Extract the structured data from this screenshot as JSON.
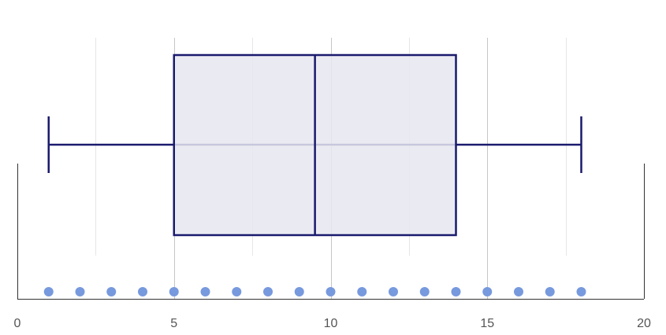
{
  "chart_data": {
    "type": "boxplot",
    "title": "",
    "xlabel": "",
    "ylabel": "",
    "xlim": [
      0,
      20
    ],
    "x_ticks": [
      0,
      5,
      10,
      15,
      20
    ],
    "x_tick_labels": [
      "0",
      "5",
      "10",
      "15",
      "20"
    ],
    "minor_grid_step": 2.5,
    "box": {
      "min": 1,
      "q1": 5,
      "median": 9.5,
      "q3": 14,
      "max": 18
    },
    "points": [
      1,
      2,
      3,
      4,
      5,
      6,
      7,
      8,
      9,
      10,
      11,
      12,
      13,
      14,
      15,
      16,
      17,
      18
    ],
    "colors": {
      "box_stroke": "#1a1a6e",
      "box_fill": "#e6e7f0",
      "whisker": "#1a1a6e",
      "points": "#7799dd",
      "axis": "#333333"
    }
  }
}
